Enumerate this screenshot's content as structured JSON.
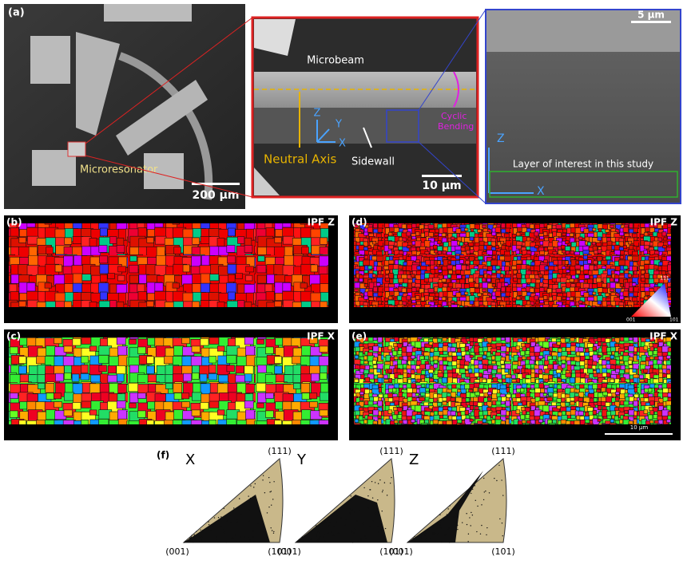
{
  "panel_a": {
    "label": "(a)",
    "sem_image": {
      "annotation": "Microresonator",
      "scale_bar": "200 μm"
    },
    "microbeam_image": {
      "title": "Microbeam",
      "axes": [
        "Z",
        "Y",
        "X"
      ],
      "neutral_axis": "Neutral Axis",
      "sidewall": "Sidewall",
      "cyclic_bending": [
        "Cyclic",
        "Bending"
      ],
      "scale_bar": "10 μm"
    },
    "cross_section_image": {
      "scale_bar": "5 μm",
      "axes": [
        "Z",
        "X"
      ],
      "layer_label": "Layer of interest in this study"
    }
  },
  "maps": [
    {
      "label": "(b)",
      "mode": "IPF Z"
    },
    {
      "label": "(c)",
      "mode": "IPF X"
    },
    {
      "label": "(d)",
      "mode": "IPF Z",
      "legend": [
        "111",
        "001",
        "101"
      ]
    },
    {
      "label": "(e)",
      "mode": "IPF X",
      "scale_bar": "10 μm"
    }
  ],
  "panel_f": {
    "label": "(f)",
    "triangles": [
      {
        "axis": "X",
        "top": "(111)",
        "left": "(001)",
        "right": "(101)"
      },
      {
        "axis": "Y",
        "top": "(111)",
        "left": "(001)",
        "right": "(101)"
      },
      {
        "axis": "Z",
        "top": "(111)",
        "left": "(001)",
        "right": "(101)"
      }
    ]
  }
}
